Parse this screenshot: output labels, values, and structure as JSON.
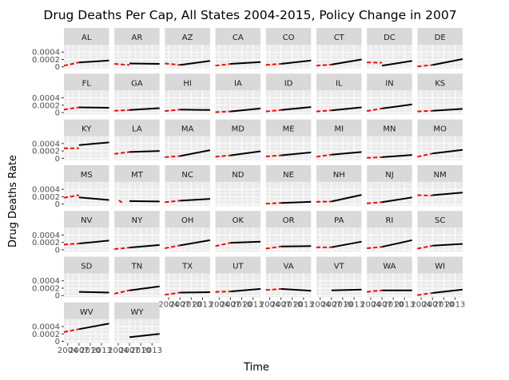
{
  "chart_data": {
    "type": "line",
    "title": "Drug Deaths Per Cap, All States 2004-2015, Policy Change in 2007",
    "xlabel": "Time",
    "ylabel": "Drug Deaths Rate",
    "policy_year": 2007,
    "xlim": [
      2003,
      2015
    ],
    "ylim": [
      -5e-05,
      0.0006
    ],
    "x_ticks": [
      2004,
      2007,
      2010,
      2013
    ],
    "x_tick_labels": [
      "2004",
      "2007",
      "2010",
      "2013"
    ],
    "y_ticks": [
      0,
      0.0002,
      0.0004
    ],
    "y_tick_labels": [
      "0",
      "0.0002",
      "0.0004"
    ],
    "grid": true,
    "pre_series_color": "#ff0000",
    "post_series_color": "#000000",
    "panel_bg": "#ebebeb",
    "strip_bg": "#d9d9d9",
    "panels": [
      {
        "state": "AL",
        "pre": [
          [
            2003,
            3e-05
          ],
          [
            2007,
            0.00012
          ]
        ],
        "post": [
          [
            2007,
            0.00012
          ],
          [
            2015,
            0.00017
          ]
        ]
      },
      {
        "state": "AR",
        "pre": [
          [
            2003,
            8e-05
          ],
          [
            2007,
            5e-05
          ]
        ],
        "post": [
          [
            2007,
            9e-05
          ],
          [
            2015,
            8e-05
          ]
        ]
      },
      {
        "state": "AZ",
        "pre": [
          [
            2003,
            9e-05
          ],
          [
            2007,
            5e-05
          ]
        ],
        "post": [
          [
            2007,
            5e-05
          ],
          [
            2015,
            0.00016
          ]
        ]
      },
      {
        "state": "CA",
        "pre": [
          [
            2003,
            3e-05
          ],
          [
            2007,
            8e-05
          ]
        ],
        "post": [
          [
            2007,
            8e-05
          ],
          [
            2015,
            0.00013
          ]
        ]
      },
      {
        "state": "CO",
        "pre": [
          [
            2003,
            5e-05
          ],
          [
            2007,
            8e-05
          ]
        ],
        "post": [
          [
            2007,
            8e-05
          ],
          [
            2015,
            0.00017
          ]
        ]
      },
      {
        "state": "CT",
        "pre": [
          [
            2003,
            3e-05
          ],
          [
            2007,
            6e-05
          ]
        ],
        "post": [
          [
            2007,
            6e-05
          ],
          [
            2015,
            0.0002
          ]
        ]
      },
      {
        "state": "DC",
        "pre": [
          [
            2003,
            0.00012
          ],
          [
            2007,
            0.00011
          ]
        ],
        "post": [
          [
            2007,
            3e-05
          ],
          [
            2015,
            0.00016
          ]
        ]
      },
      {
        "state": "DE",
        "pre": [
          [
            2003,
            1e-05
          ],
          [
            2007,
            5e-05
          ]
        ],
        "post": [
          [
            2007,
            5e-05
          ],
          [
            2015,
            0.00021
          ]
        ]
      },
      {
        "state": "FL",
        "pre": [
          [
            2003,
            8e-05
          ],
          [
            2007,
            0.00014
          ]
        ],
        "post": [
          [
            2007,
            0.00014
          ],
          [
            2015,
            0.00013
          ]
        ]
      },
      {
        "state": "GA",
        "pre": [
          [
            2003,
            5e-05
          ],
          [
            2007,
            7e-05
          ]
        ],
        "post": [
          [
            2007,
            7e-05
          ],
          [
            2015,
            0.00012
          ]
        ]
      },
      {
        "state": "HI",
        "pre": [
          [
            2003,
            4e-05
          ],
          [
            2007,
            8e-05
          ]
        ],
        "post": [
          [
            2007,
            8e-05
          ],
          [
            2015,
            7e-05
          ]
        ]
      },
      {
        "state": "IA",
        "pre": [
          [
            2003,
            1e-05
          ],
          [
            2007,
            3e-05
          ]
        ],
        "post": [
          [
            2007,
            3e-05
          ],
          [
            2015,
            0.00011
          ]
        ]
      },
      {
        "state": "ID",
        "pre": [
          [
            2003,
            3e-05
          ],
          [
            2007,
            7e-05
          ]
        ],
        "post": [
          [
            2007,
            7e-05
          ],
          [
            2015,
            0.00015
          ]
        ]
      },
      {
        "state": "IL",
        "pre": [
          [
            2003,
            3e-05
          ],
          [
            2007,
            6e-05
          ]
        ],
        "post": [
          [
            2007,
            6e-05
          ],
          [
            2015,
            0.00014
          ]
        ]
      },
      {
        "state": "IN",
        "pre": [
          [
            2003,
            4e-05
          ],
          [
            2007,
            0.00011
          ]
        ],
        "post": [
          [
            2007,
            0.00011
          ],
          [
            2015,
            0.00022
          ]
        ]
      },
      {
        "state": "KS",
        "pre": [
          [
            2003,
            3e-05
          ],
          [
            2007,
            5e-05
          ]
        ],
        "post": [
          [
            2007,
            5e-05
          ],
          [
            2015,
            0.0001
          ]
        ]
      },
      {
        "state": "KY",
        "pre": [
          [
            2003,
            0.00027
          ],
          [
            2007,
            0.00027
          ]
        ],
        "post": [
          [
            2007,
            0.00036
          ],
          [
            2015,
            0.00043
          ]
        ]
      },
      {
        "state": "LA",
        "pre": [
          [
            2003,
            0.00012
          ],
          [
            2007,
            0.00017
          ]
        ],
        "post": [
          [
            2007,
            0.00017
          ],
          [
            2015,
            0.0002
          ]
        ]
      },
      {
        "state": "MA",
        "pre": [
          [
            2003,
            3e-05
          ],
          [
            2007,
            6e-05
          ]
        ],
        "post": [
          [
            2007,
            6e-05
          ],
          [
            2015,
            0.00022
          ]
        ]
      },
      {
        "state": "MD",
        "pre": [
          [
            2003,
            4e-05
          ],
          [
            2007,
            8e-05
          ]
        ],
        "post": [
          [
            2007,
            8e-05
          ],
          [
            2015,
            0.00019
          ]
        ]
      },
      {
        "state": "ME",
        "pre": [
          [
            2003,
            5e-05
          ],
          [
            2007,
            8e-05
          ]
        ],
        "post": [
          [
            2007,
            8e-05
          ],
          [
            2015,
            0.00016
          ]
        ]
      },
      {
        "state": "MI",
        "pre": [
          [
            2003,
            4e-05
          ],
          [
            2007,
            0.0001
          ]
        ],
        "post": [
          [
            2007,
            0.0001
          ],
          [
            2015,
            0.00017
          ]
        ]
      },
      {
        "state": "MN",
        "pre": [
          [
            2003,
            1e-05
          ],
          [
            2007,
            3e-05
          ]
        ],
        "post": [
          [
            2007,
            3e-05
          ],
          [
            2015,
            9e-05
          ]
        ]
      },
      {
        "state": "MO",
        "pre": [
          [
            2003,
            4e-05
          ],
          [
            2007,
            0.00013
          ]
        ],
        "post": [
          [
            2007,
            0.00013
          ],
          [
            2015,
            0.00023
          ]
        ]
      },
      {
        "state": "MS",
        "pre": [
          [
            2003,
            0.00017
          ],
          [
            2007,
            0.00024
          ]
        ],
        "post": [
          [
            2007,
            0.00018
          ],
          [
            2015,
            0.00011
          ]
        ]
      },
      {
        "state": "MT",
        "pre": [
          [
            2004.2,
            0.0001
          ],
          [
            2005.0,
            4e-05
          ]
        ],
        "post": [
          [
            2007,
            8e-05
          ],
          [
            2015,
            7e-05
          ]
        ]
      },
      {
        "state": "NC",
        "pre": [
          [
            2003,
            5e-05
          ],
          [
            2007,
            9e-05
          ]
        ],
        "post": [
          [
            2007,
            9e-05
          ],
          [
            2015,
            0.00014
          ]
        ]
      },
      {
        "state": "ND",
        "pre": [],
        "post": []
      },
      {
        "state": "NE",
        "pre": [
          [
            2003,
            1e-05
          ],
          [
            2007,
            3e-05
          ]
        ],
        "post": [
          [
            2007,
            3e-05
          ],
          [
            2015,
            6e-05
          ]
        ]
      },
      {
        "state": "NH",
        "pre": [
          [
            2003,
            6e-05
          ],
          [
            2007,
            7e-05
          ]
        ],
        "post": [
          [
            2007,
            7e-05
          ],
          [
            2015,
            0.00025
          ]
        ]
      },
      {
        "state": "NJ",
        "pre": [
          [
            2003,
            2e-05
          ],
          [
            2007,
            5e-05
          ]
        ],
        "post": [
          [
            2007,
            5e-05
          ],
          [
            2015,
            0.00018
          ]
        ]
      },
      {
        "state": "NM",
        "pre": [
          [
            2003,
            0.00024
          ],
          [
            2007,
            0.00023
          ]
        ],
        "post": [
          [
            2007,
            0.00024
          ],
          [
            2015,
            0.00031
          ]
        ]
      },
      {
        "state": "NV",
        "pre": [
          [
            2003,
            0.00014
          ],
          [
            2007,
            0.00017
          ]
        ],
        "post": [
          [
            2007,
            0.00017
          ],
          [
            2015,
            0.00025
          ]
        ]
      },
      {
        "state": "NY",
        "pre": [
          [
            2003,
            2e-05
          ],
          [
            2007,
            6e-05
          ]
        ],
        "post": [
          [
            2007,
            6e-05
          ],
          [
            2015,
            0.00013
          ]
        ]
      },
      {
        "state": "OH",
        "pre": [
          [
            2003,
            4e-05
          ],
          [
            2007,
            0.00012
          ]
        ],
        "post": [
          [
            2007,
            0.00012
          ],
          [
            2015,
            0.00026
          ]
        ]
      },
      {
        "state": "OK",
        "pre": [
          [
            2003,
            0.0001
          ],
          [
            2007,
            0.00019
          ]
        ],
        "post": [
          [
            2007,
            0.00019
          ],
          [
            2015,
            0.00022
          ]
        ]
      },
      {
        "state": "OR",
        "pre": [
          [
            2003,
            3e-05
          ],
          [
            2007,
            9e-05
          ]
        ],
        "post": [
          [
            2007,
            9e-05
          ],
          [
            2015,
            0.0001
          ]
        ]
      },
      {
        "state": "PA",
        "pre": [
          [
            2003,
            7e-05
          ],
          [
            2007,
            7e-05
          ]
        ],
        "post": [
          [
            2007,
            7e-05
          ],
          [
            2015,
            0.00022
          ]
        ]
      },
      {
        "state": "RI",
        "pre": [
          [
            2003,
            4e-05
          ],
          [
            2007,
            8e-05
          ]
        ],
        "post": [
          [
            2007,
            8e-05
          ],
          [
            2015,
            0.00026
          ]
        ]
      },
      {
        "state": "SC",
        "pre": [
          [
            2003,
            3e-05
          ],
          [
            2007,
            0.00011
          ]
        ],
        "post": [
          [
            2007,
            0.00011
          ],
          [
            2015,
            0.00016
          ]
        ]
      },
      {
        "state": "SD",
        "pre": [],
        "post": [
          [
            2007,
            0.0001
          ],
          [
            2015,
            8e-05
          ]
        ]
      },
      {
        "state": "TN",
        "pre": [
          [
            2003,
            5e-05
          ],
          [
            2007,
            0.00014
          ]
        ],
        "post": [
          [
            2007,
            0.00014
          ],
          [
            2015,
            0.00025
          ]
        ]
      },
      {
        "state": "TX",
        "pre": [
          [
            2003,
            2e-05
          ],
          [
            2007,
            8e-05
          ]
        ],
        "post": [
          [
            2007,
            8e-05
          ],
          [
            2015,
            9e-05
          ]
        ]
      },
      {
        "state": "UT",
        "pre": [
          [
            2003,
            0.0001
          ],
          [
            2007,
            0.00011
          ]
        ],
        "post": [
          [
            2007,
            0.00011
          ],
          [
            2015,
            0.00018
          ]
        ]
      },
      {
        "state": "VA",
        "pre": [
          [
            2003,
            0.00015
          ],
          [
            2007,
            0.00018
          ]
        ],
        "post": [
          [
            2007,
            0.00018
          ],
          [
            2015,
            0.00013
          ]
        ]
      },
      {
        "state": "VT",
        "pre": [],
        "post": [
          [
            2007,
            0.00014
          ],
          [
            2015,
            0.00016
          ]
        ]
      },
      {
        "state": "WA",
        "pre": [
          [
            2003,
            0.0001
          ],
          [
            2007,
            0.00014
          ]
        ],
        "post": [
          [
            2007,
            0.00014
          ],
          [
            2015,
            0.00014
          ]
        ]
      },
      {
        "state": "WI",
        "pre": [
          [
            2003,
            1e-05
          ],
          [
            2007,
            7e-05
          ]
        ],
        "post": [
          [
            2007,
            7e-05
          ],
          [
            2015,
            0.00016
          ]
        ]
      },
      {
        "state": "WV",
        "pre": [
          [
            2003,
            0.00025
          ],
          [
            2007,
            0.00033
          ]
        ],
        "post": [
          [
            2007,
            0.00033
          ],
          [
            2015,
            0.00048
          ]
        ]
      },
      {
        "state": "WY",
        "pre": [],
        "post": [
          [
            2007,
            0.00011
          ],
          [
            2015,
            0.0002
          ]
        ]
      }
    ]
  }
}
